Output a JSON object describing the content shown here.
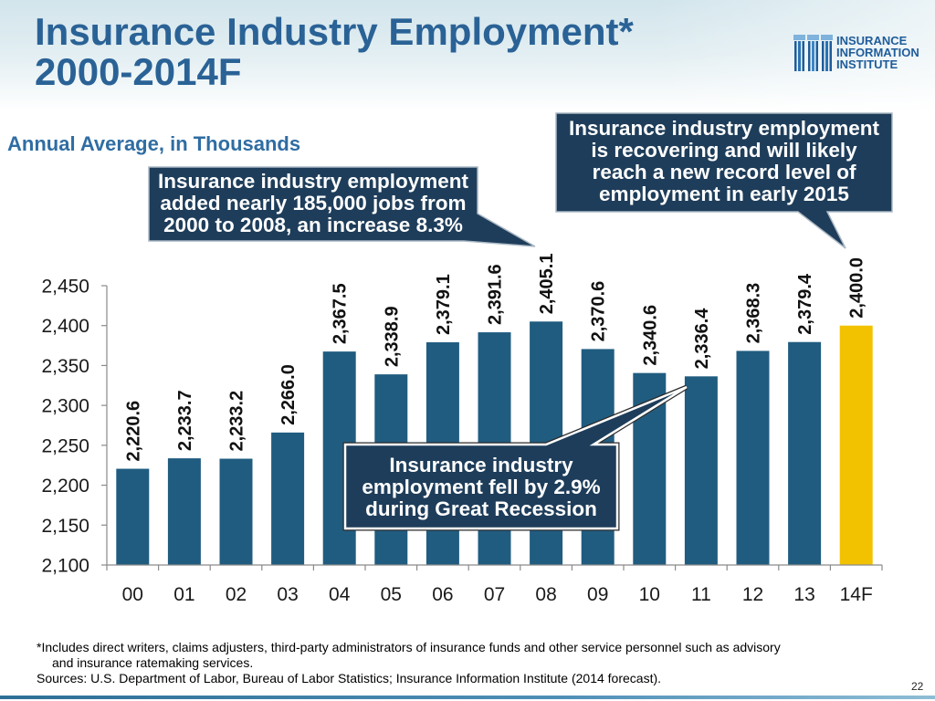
{
  "chart_data": {
    "type": "bar",
    "title": "Insurance Industry Employment*",
    "subtitle": "2000-2014F",
    "ylabel": "Annual Average, in Thousands",
    "xlabel": "",
    "categories": [
      "00",
      "01",
      "02",
      "03",
      "04",
      "05",
      "06",
      "07",
      "08",
      "09",
      "10",
      "11",
      "12",
      "13",
      "14F"
    ],
    "values": [
      2220.6,
      2233.7,
      2233.2,
      2266.0,
      2367.5,
      2338.9,
      2379.1,
      2391.6,
      2405.1,
      2370.6,
      2340.6,
      2336.4,
      2368.3,
      2379.4,
      2400.0
    ],
    "value_labels": [
      "2,220.6",
      "2,233.7",
      "2,233.2",
      "2,266.0",
      "2,367.5",
      "2,338.9",
      "2,379.1",
      "2,391.6",
      "2,405.1",
      "2,370.6",
      "2,340.6",
      "2,336.4",
      "2,368.3",
      "2,379.4",
      "2,400.0"
    ],
    "forecast_category": "14F",
    "ylim": [
      2100,
      2450
    ],
    "yticks": [
      2100,
      2150,
      2200,
      2250,
      2300,
      2350,
      2400,
      2450
    ],
    "ytick_labels": [
      "2,100",
      "2,150",
      "2,200",
      "2,250",
      "2,300",
      "2,350",
      "2,400",
      "2,450"
    ],
    "grid": false,
    "annotations": [
      {
        "lines": [
          "Insurance industry employment",
          "added nearly 185,000 jobs from",
          "2000 to 2008, an increase 8.3%"
        ]
      },
      {
        "lines": [
          "Insurance industry employment",
          "is recovering and will likely",
          "reach a new record level of",
          "employment in early 2015"
        ]
      },
      {
        "lines": [
          "Insurance industry",
          "employment fell by 2.9%",
          "during Great Recession"
        ]
      }
    ]
  },
  "logo": {
    "lines": [
      "INSURANCE",
      "INFORMATION",
      "INSTITUTE"
    ]
  },
  "footnotes": {
    "note_line1": "*Includes direct writers, claims adjusters, third-party administrators of insurance funds and other service personnel such as advisory",
    "note_line2": "and insurance ratemaking services.",
    "sources": "Sources: U.S. Department of Labor, Bureau of Labor Statistics; Insurance Information Institute (2014 forecast)."
  },
  "page_number": "22",
  "colors": {
    "title": "#2A6296",
    "bar": "#205C80",
    "forecast_bar": "#F2C200",
    "callout_bg": "#1E3D5A",
    "accent": "#2F6DA3"
  }
}
